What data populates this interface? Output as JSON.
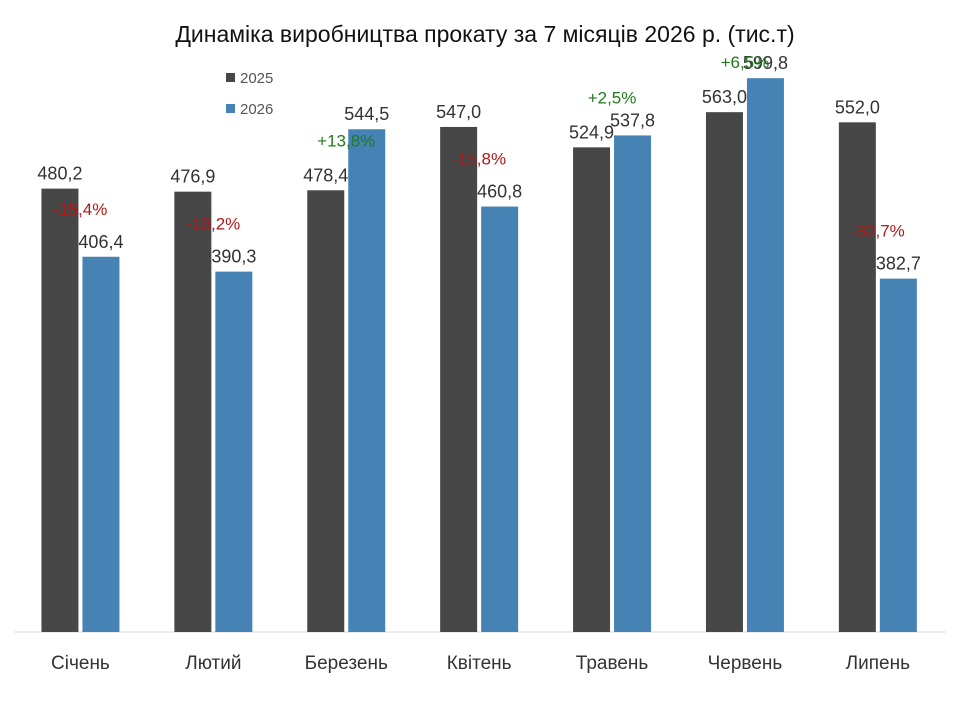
{
  "chart_data": {
    "type": "bar",
    "title": "Динаміка виробництва прокату за 7 місяців 2026 р. (тис.т)",
    "categories": [
      "Січень",
      "Лютий",
      "Березень",
      "Квітень",
      "Травень",
      "Червень",
      "Липень"
    ],
    "series": [
      {
        "name": "2025",
        "color": "#474747",
        "values": [
          480.2,
          476.9,
          478.4,
          547.0,
          524.9,
          563.0,
          552.0
        ],
        "labels": [
          "480,2",
          "476,9",
          "478,4",
          "547,0",
          "524,9",
          "563,0",
          "552,0"
        ]
      },
      {
        "name": "2026",
        "color": "#4682B4",
        "values": [
          406.4,
          390.3,
          544.5,
          460.8,
          537.8,
          599.8,
          382.7
        ],
        "labels": [
          "406,4",
          "390,3",
          "544,5",
          "460,8",
          "537,8",
          "599,8",
          "382,7"
        ]
      }
    ],
    "changes": [
      "-15,4%",
      "-18,2%",
      "+13,8%",
      "-15,8%",
      "+2,5%",
      "+6,5%",
      "-30,7%"
    ],
    "change_colors": {
      "positive": "#1E7B1E",
      "negative": "#B01818"
    },
    "ylim": [
      0,
      600
    ],
    "grid": false,
    "legend_position": "top-left"
  }
}
